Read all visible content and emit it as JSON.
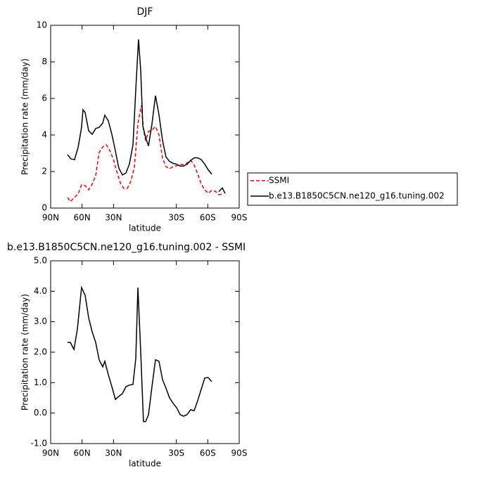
{
  "chart_data": [
    {
      "type": "line",
      "title": "DJF",
      "xlabel": "latitude",
      "ylabel": "Precipitation rate (mm/day)",
      "xlim": [
        90,
        -90
      ],
      "xticks": [
        {
          "value": 90,
          "label": "90N"
        },
        {
          "value": 60,
          "label": "60N"
        },
        {
          "value": 30,
          "label": "30N"
        },
        {
          "value": -30,
          "label": "30S"
        },
        {
          "value": -60,
          "label": "60S"
        },
        {
          "value": -90,
          "label": "90S"
        }
      ],
      "ylim": [
        0,
        10
      ],
      "yticks": [
        0,
        2,
        4,
        6,
        8,
        10
      ],
      "legend": "right",
      "series": [
        {
          "name": "SSMI",
          "color": "#ff0000",
          "linestyle": "dashed",
          "x": [
            73.9,
            71.2,
            67.2,
            63.8,
            60.5,
            57.1,
            53.7,
            50.4,
            47.0,
            43.7,
            40.3,
            36.9,
            33.6,
            30.2,
            26.9,
            23.5,
            20.2,
            16.8,
            13.4,
            10.1,
            6.7,
            3.4,
            1.4,
            -0.7,
            -3.4,
            -6.7,
            -10.1,
            -13.4,
            -16.8,
            -20.1,
            -23.5,
            -26.9,
            -30.2,
            -33.6,
            -36.9,
            -40.3,
            -43.6,
            -47.0,
            -50.4,
            -53.7,
            -57.1,
            -60.4,
            -63.8,
            -67.2,
            -70.5,
            -73.9
          ],
          "values": [
            0.58,
            0.35,
            0.58,
            0.77,
            1.27,
            1.23,
            1.0,
            1.31,
            1.77,
            3.04,
            3.35,
            3.46,
            3.15,
            2.69,
            2.0,
            1.38,
            1.08,
            1.08,
            1.46,
            2.23,
            4.62,
            5.62,
            4.31,
            3.69,
            4.19,
            4.27,
            4.46,
            4.0,
            2.73,
            2.27,
            2.15,
            2.27,
            2.31,
            2.38,
            2.38,
            2.46,
            2.62,
            2.35,
            1.88,
            1.31,
            1.0,
            0.81,
            0.96,
            0.92,
            0.73,
            0.77
          ]
        },
        {
          "name": "b.e13.B1850C5CN.ne120_g16.tuning.002",
          "color": "#000000",
          "linestyle": "solid",
          "x": [
            73.9,
            70.5,
            67.2,
            63.8,
            60.5,
            59.1,
            57.1,
            53.7,
            50.4,
            47.0,
            43.7,
            40.3,
            38.3,
            34.9,
            31.6,
            28.2,
            24.9,
            21.5,
            18.1,
            14.8,
            11.4,
            8.1,
            6.1,
            4.0,
            2.0,
            -0.7,
            -3.4,
            -6.7,
            -10.1,
            -13.4,
            -16.8,
            -20.1,
            -23.5,
            -26.9,
            -30.2,
            -33.6,
            -36.9,
            -40.3,
            -43.6,
            -47.0,
            -50.4,
            -53.7,
            -57.1,
            -60.4,
            -63.8,
            -67.2,
            -70.5,
            -73.9,
            -76.6
          ],
          "values": [
            2.92,
            2.69,
            2.65,
            3.31,
            4.42,
            5.38,
            5.23,
            4.23,
            4.04,
            4.35,
            4.42,
            4.65,
            5.08,
            4.77,
            4.04,
            3.12,
            2.19,
            1.81,
            1.92,
            2.42,
            3.46,
            7.15,
            9.23,
            7.54,
            4.5,
            3.85,
            3.4,
            4.6,
            6.15,
            5.1,
            3.7,
            2.8,
            2.55,
            2.45,
            2.4,
            2.3,
            2.3,
            2.4,
            2.6,
            2.75,
            2.75,
            2.65,
            2.4,
            2.1,
            1.85,
            null,
            0.9,
            1.1,
            0.8
          ]
        }
      ]
    },
    {
      "type": "line",
      "title": "b.e13.B1850C5CN.ne120_g16.tuning.002 - SSMI",
      "xlabel": "latitude",
      "ylabel": "Precipitation rate (mm/day)",
      "xlim": [
        90,
        -90
      ],
      "xticks": [
        {
          "value": 90,
          "label": "90N"
        },
        {
          "value": 60,
          "label": "60N"
        },
        {
          "value": 30,
          "label": "30N"
        },
        {
          "value": -30,
          "label": "30S"
        },
        {
          "value": -60,
          "label": "60S"
        },
        {
          "value": -90,
          "label": "90S"
        }
      ],
      "ylim": [
        -1,
        5
      ],
      "yticks": [
        {
          "value": -1,
          "label": "-1.0"
        },
        {
          "value": 0,
          "label": "0.0"
        },
        {
          "value": 1,
          "label": "1.0"
        },
        {
          "value": 2,
          "label": "2.0"
        },
        {
          "value": 3,
          "label": "3.0"
        },
        {
          "value": 4,
          "label": "4.0"
        },
        {
          "value": 5,
          "label": "5.0"
        }
      ],
      "series": [
        {
          "color": "#000000",
          "linestyle": "solid",
          "x": [
            73.9,
            71.2,
            67.8,
            64.5,
            60.5,
            57.1,
            53.7,
            50.4,
            47.0,
            43.7,
            40.3,
            38.3,
            34.9,
            31.6,
            28.2,
            24.9,
            21.5,
            18.1,
            14.8,
            11.4,
            8.7,
            6.7,
            4.0,
            1.4,
            -0.7,
            -3.4,
            -6.7,
            -10.1,
            -13.4,
            -16.8,
            -20.1,
            -23.5,
            -26.9,
            -30.2,
            -33.6,
            -36.9,
            -40.3,
            -43.6,
            -47.0,
            -50.4,
            -53.7,
            -57.1,
            -60.4,
            -63.8
          ],
          "values": [
            2.32,
            2.32,
            2.09,
            2.76,
            4.12,
            3.87,
            3.13,
            2.67,
            2.32,
            1.75,
            1.52,
            1.7,
            1.26,
            0.87,
            0.45,
            0.55,
            0.64,
            0.87,
            0.92,
            0.94,
            1.79,
            4.12,
            2.02,
            -0.28,
            -0.28,
            -0.05,
            0.87,
            1.75,
            1.7,
            1.1,
            0.82,
            0.5,
            0.32,
            0.18,
            -0.05,
            -0.1,
            -0.05,
            0.11,
            0.08,
            0.41,
            0.78,
            1.15,
            1.17,
            1.03
          ]
        }
      ]
    }
  ]
}
